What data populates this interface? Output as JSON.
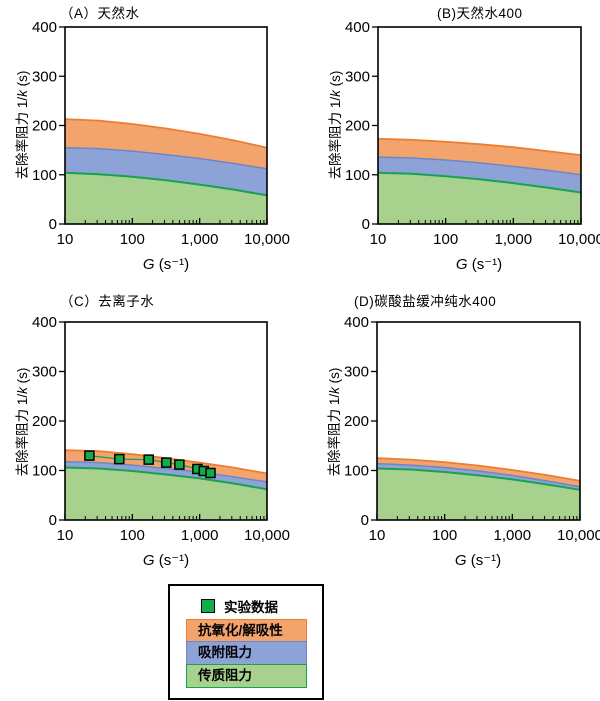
{
  "colors": {
    "axis": "#000000",
    "mass_transfer_fill": "#A9D18E",
    "mass_transfer_line": "#17A253",
    "adsorption_fill": "#8DA3D8",
    "adsorption_line": "#6E86C6",
    "oxidation_fill": "#F3A46C",
    "oxidation_line": "#ED7D31",
    "marker_fill": "#12AD4B"
  },
  "legend": {
    "experimental": {
      "label": "实验数据",
      "marker_color": "#12AD4B"
    },
    "bands": [
      {
        "label": "抗氧化/解吸性",
        "fill": "#F3A46C",
        "border": "#ED7D31"
      },
      {
        "label": "吸附阻力",
        "fill": "#8DA3D8",
        "border": "#6E86C6"
      },
      {
        "label": "传质阻力",
        "fill": "#A9D18E",
        "border": "#17A253"
      }
    ]
  },
  "chart_data": [
    {
      "id": "A",
      "title": "（A）天然水",
      "type": "area",
      "x_scale": "log",
      "x_range": [
        10,
        10000
      ],
      "y_range": [
        0,
        400
      ],
      "x_ticks": [
        10,
        100,
        1000,
        10000
      ],
      "x_tick_labels": [
        "10",
        "100",
        "1,000",
        "10,000"
      ],
      "y_ticks": [
        0,
        100,
        200,
        300,
        400
      ],
      "x_label_var": "G",
      "x_label_unit": " (s⁻¹)",
      "y_label_pre": "去除率阻力 1/",
      "y_label_var": "k",
      "y_label_post": " (s)",
      "g_points": [
        10,
        31.6,
        100,
        316,
        1000,
        3162,
        10000
      ],
      "layers": [
        {
          "name": "传质阻力",
          "fill_key": "mass_transfer_fill",
          "line_key": "mass_transfer_line",
          "line_width": 2,
          "tops": [
            104,
            101,
            96,
            89,
            80,
            70,
            58
          ]
        },
        {
          "name": "吸附阻力",
          "fill_key": "adsorption_fill",
          "line_key": "adsorption_line",
          "line_width": 1.5,
          "tops": [
            155,
            153,
            148,
            141,
            133,
            123,
            112
          ]
        },
        {
          "name": "抗氧化/解吸性",
          "fill_key": "oxidation_fill",
          "line_key": "oxidation_line",
          "line_width": 1.8,
          "tops": [
            213,
            210,
            203,
            194,
            183,
            170,
            155
          ]
        }
      ]
    },
    {
      "id": "B",
      "title": "(B)天然水400",
      "type": "area",
      "x_scale": "log",
      "x_range": [
        10,
        10000
      ],
      "y_range": [
        0,
        400
      ],
      "x_ticks": [
        10,
        100,
        1000,
        10000
      ],
      "x_tick_labels": [
        "10",
        "100",
        "1,000",
        "10,000"
      ],
      "y_ticks": [
        0,
        100,
        200,
        300,
        400
      ],
      "x_label_var": "G",
      "x_label_unit": " (s⁻¹)",
      "y_label_pre": "去除率阻力 1/",
      "y_label_var": "k",
      "y_label_post": " (s)",
      "g_points": [
        10,
        31.6,
        100,
        316,
        1000,
        3162,
        10000
      ],
      "layers": [
        {
          "name": "传质阻力",
          "fill_key": "mass_transfer_fill",
          "line_key": "mass_transfer_line",
          "line_width": 2,
          "tops": [
            104,
            102,
            97,
            91,
            83,
            74,
            64
          ]
        },
        {
          "name": "吸附阻力",
          "fill_key": "adsorption_fill",
          "line_key": "adsorption_line",
          "line_width": 1.5,
          "tops": [
            136,
            134,
            130,
            124,
            117,
            109,
            100
          ]
        },
        {
          "name": "抗氧化/解吸性",
          "fill_key": "oxidation_fill",
          "line_key": "oxidation_line",
          "line_width": 1.8,
          "tops": [
            173,
            171,
            167,
            162,
            156,
            148,
            140
          ]
        }
      ]
    },
    {
      "id": "C",
      "title": "（C）去离子水",
      "type": "area",
      "x_scale": "log",
      "x_range": [
        10,
        10000
      ],
      "y_range": [
        0,
        400
      ],
      "x_ticks": [
        10,
        100,
        1000,
        10000
      ],
      "x_tick_labels": [
        "10",
        "100",
        "1,000",
        "10,000"
      ],
      "y_ticks": [
        0,
        100,
        200,
        300,
        400
      ],
      "x_label_var": "G",
      "x_label_unit": " (s⁻¹)",
      "y_label_pre": "去除率阻力 1/",
      "y_label_var": "k",
      "y_label_post": " (s)",
      "g_points": [
        10,
        31.6,
        100,
        316,
        1000,
        3162,
        10000
      ],
      "layers": [
        {
          "name": "传质阻力",
          "fill_key": "mass_transfer_fill",
          "line_key": "mass_transfer_line",
          "line_width": 2,
          "tops": [
            106,
            104,
            99,
            92,
            84,
            74,
            62
          ]
        },
        {
          "name": "吸附阻力",
          "fill_key": "adsorption_fill",
          "line_key": "adsorption_line",
          "line_width": 1.5,
          "tops": [
            118,
            116,
            111,
            104,
            97,
            87,
            77
          ]
        },
        {
          "name": "抗氧化/解吸性",
          "fill_key": "oxidation_fill",
          "line_key": "oxidation_line",
          "line_width": 1.8,
          "tops": [
            141,
            139,
            133,
            125,
            116,
            106,
            94
          ]
        }
      ],
      "experimental": {
        "label": "实验数据",
        "points": [
          [
            23,
            130
          ],
          [
            64,
            123
          ],
          [
            175,
            122
          ],
          [
            320,
            116
          ],
          [
            500,
            112
          ],
          [
            925,
            103
          ],
          [
            1150,
            99
          ],
          [
            1450,
            95
          ]
        ],
        "fit_line": [
          [
            20,
            131
          ],
          [
            64,
            123
          ],
          [
            175,
            122
          ],
          [
            320,
            116
          ],
          [
            500,
            112
          ],
          [
            925,
            103
          ],
          [
            1150,
            99
          ],
          [
            1600,
            93
          ]
        ]
      }
    },
    {
      "id": "D",
      "title": "(D)碳酸盐缓冲纯水400",
      "type": "area",
      "x_scale": "log",
      "x_range": [
        10,
        10000
      ],
      "y_range": [
        0,
        400
      ],
      "x_ticks": [
        10,
        100,
        1000,
        10000
      ],
      "x_tick_labels": [
        "10",
        "100",
        "1,000",
        "10,000"
      ],
      "y_ticks": [
        0,
        100,
        200,
        300,
        400
      ],
      "x_label_var": "G",
      "x_label_unit": " (s⁻¹)",
      "y_label_pre": "去除率阻力 1/",
      "y_label_var": "k",
      "y_label_post": " (s)",
      "g_points": [
        10,
        31.6,
        100,
        316,
        1000,
        3162,
        10000
      ],
      "layers": [
        {
          "name": "传质阻力",
          "fill_key": "mass_transfer_fill",
          "line_key": "mass_transfer_line",
          "line_width": 2,
          "tops": [
            104,
            102,
            97,
            90,
            82,
            72,
            61
          ]
        },
        {
          "name": "吸附阻力",
          "fill_key": "adsorption_fill",
          "line_key": "adsorption_line",
          "line_width": 1.5,
          "tops": [
            114,
            111,
            106,
            99,
            90,
            79,
            67
          ]
        },
        {
          "name": "抗氧化/解吸性",
          "fill_key": "oxidation_fill",
          "line_key": "oxidation_line",
          "line_width": 1.8,
          "tops": [
            125,
            122,
            117,
            110,
            101,
            91,
            79
          ]
        }
      ]
    }
  ]
}
